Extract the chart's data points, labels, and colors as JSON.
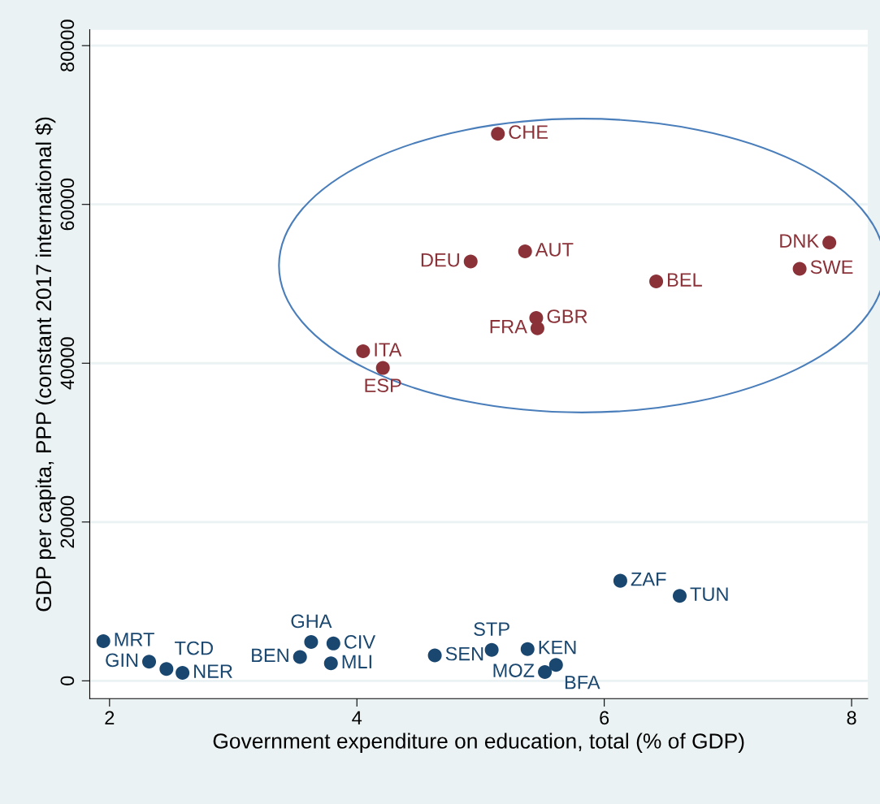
{
  "chart_data": {
    "type": "scatter",
    "xlabel": "Government expenditure on education, total (% of GDP)",
    "ylabel": "GDP per capita, PPP (constant 2017 international $)",
    "xlim": [
      1.84,
      8.13
    ],
    "xticks": [
      2,
      4,
      6,
      8
    ],
    "ylim": [
      -2250,
      82000
    ],
    "yticks": [
      0,
      20000,
      40000,
      60000,
      80000
    ],
    "grid": "y",
    "marker": "circle",
    "legend": false,
    "series": [
      {
        "color": "#8b3239",
        "x": [
          5.14,
          4.92,
          5.36,
          6.42,
          7.82,
          7.58,
          5.45,
          5.46,
          4.05,
          4.21
        ],
        "values": [
          68900,
          52800,
          54100,
          50300,
          55200,
          51900,
          45700,
          44400,
          41500,
          39400
        ]
      },
      {
        "color": "#1a476f",
        "x": [
          1.95,
          2.32,
          2.46,
          2.59,
          3.63,
          3.81,
          3.54,
          3.79,
          4.63,
          5.09,
          5.38,
          5.61,
          5.52,
          6.13,
          6.61
        ],
        "values": [
          5000,
          2400,
          1500,
          1000,
          4900,
          4700,
          3000,
          2200,
          3200,
          3900,
          4000,
          2000,
          1100,
          12600,
          10700
        ]
      }
    ],
    "annotations": [
      {
        "text": "CHE",
        "x": 5.14,
        "y": 68900
      },
      {
        "text": "DEU",
        "x": 4.92,
        "y": 52800
      },
      {
        "text": "AUT",
        "x": 5.36,
        "y": 54100
      },
      {
        "text": "BEL",
        "x": 6.42,
        "y": 50300
      },
      {
        "text": "DNK",
        "x": 7.82,
        "y": 55200
      },
      {
        "text": "SWE",
        "x": 7.58,
        "y": 51900
      },
      {
        "text": "GBR",
        "x": 5.45,
        "y": 45700
      },
      {
        "text": "FRA",
        "x": 5.46,
        "y": 44400
      },
      {
        "text": "ITA",
        "x": 4.05,
        "y": 41500
      },
      {
        "text": "ESP",
        "x": 4.21,
        "y": 39400
      },
      {
        "text": "MRT",
        "x": 1.95,
        "y": 5000
      },
      {
        "text": "GIN",
        "x": 2.32,
        "y": 2400
      },
      {
        "text": "TCD",
        "x": 2.46,
        "y": 1500
      },
      {
        "text": "NER",
        "x": 2.59,
        "y": 1000
      },
      {
        "text": "GHA",
        "x": 3.63,
        "y": 4900
      },
      {
        "text": "CIV",
        "x": 3.81,
        "y": 4700
      },
      {
        "text": "BEN",
        "x": 3.54,
        "y": 3000
      },
      {
        "text": "MLI",
        "x": 3.79,
        "y": 2200
      },
      {
        "text": "SEN",
        "x": 4.63,
        "y": 3200
      },
      {
        "text": "STP",
        "x": 5.09,
        "y": 3900
      },
      {
        "text": "KEN",
        "x": 5.38,
        "y": 4000
      },
      {
        "text": "BFA",
        "x": 5.61,
        "y": 2000
      },
      {
        "text": "MOZ",
        "x": 5.52,
        "y": 1100
      },
      {
        "text": "ZAF",
        "x": 6.13,
        "y": 12600
      },
      {
        "text": "TUN",
        "x": 6.61,
        "y": 10700
      }
    ]
  }
}
